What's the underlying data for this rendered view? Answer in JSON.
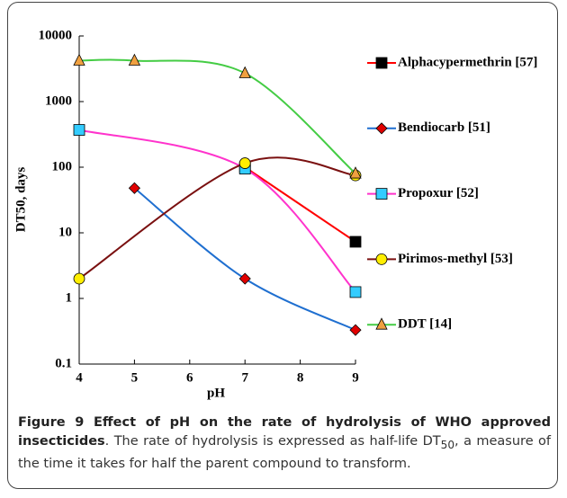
{
  "chart_data": {
    "type": "line",
    "xlabel": "pH",
    "ylabel": "DT50, days",
    "log_y": true,
    "xlim": [
      4,
      9
    ],
    "xticks": [
      4,
      5,
      6,
      7,
      8,
      9
    ],
    "ylim": [
      0.1,
      10000
    ],
    "yticks": [
      0.1,
      1,
      10,
      100,
      1000,
      10000
    ],
    "smooth": true,
    "legend": "right",
    "series": [
      {
        "name": "Alphacypermethrin [57]",
        "color": "#ff0000",
        "marker": "square",
        "marker_color": "#000000",
        "x": [
          7,
          9
        ],
        "values": [
          100,
          7.3
        ]
      },
      {
        "name": "Bendiocarb [51]",
        "color": "#1f6fd0",
        "marker": "diamond",
        "marker_color": "#e00000",
        "x": [
          5,
          7,
          9
        ],
        "values": [
          48,
          2,
          0.33
        ]
      },
      {
        "name": "Propoxur [52]",
        "color": "#ff33cc",
        "marker": "square",
        "marker_color": "#33ccff",
        "x": [
          4,
          7,
          9
        ],
        "values": [
          370,
          95,
          1.25
        ]
      },
      {
        "name": "Pirimos-methyl [53]",
        "color": "#7a1010",
        "marker": "circle",
        "marker_color": "#ffee00",
        "x": [
          4,
          7,
          9
        ],
        "values": [
          2,
          115,
          75
        ]
      },
      {
        "name": "DDT [14]",
        "color": "#44cc44",
        "marker": "triangle",
        "marker_color": "#f0a040",
        "x": [
          4,
          5,
          7,
          9
        ],
        "values": [
          4200,
          4200,
          2700,
          80
        ]
      }
    ]
  },
  "caption": {
    "title": "Figure 9 Effect of pH on the rate of hydrolysis of WHO approved insecticides",
    "text1": ". The rate of hydrolysis is expressed as half-life DT",
    "subscript": "50",
    "text2": ", a measure of the time it takes for half the parent compound to transform."
  }
}
